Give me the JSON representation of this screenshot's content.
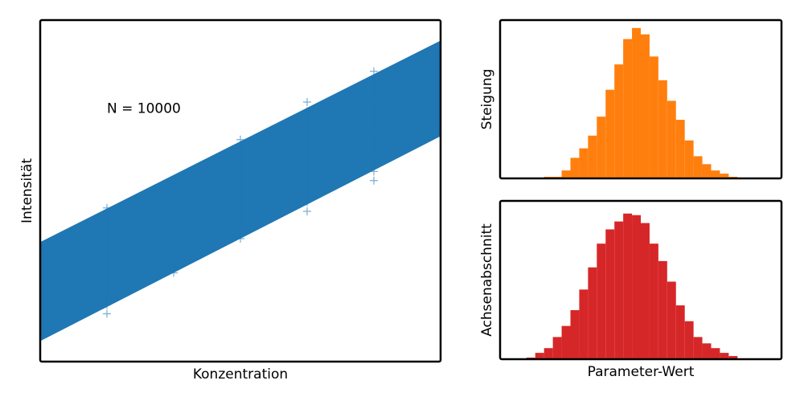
{
  "chart_data": [
    {
      "type": "line-band",
      "annotation": "N = 10000",
      "xlabel": "Konzentration",
      "ylabel": "Intensität",
      "xlim": [
        0,
        6
      ],
      "ylim": [
        0,
        10
      ],
      "color": "#1f77b4",
      "x": [
        0,
        6
      ],
      "lower": [
        0.6,
        6.6
      ],
      "upper": [
        3.5,
        9.4
      ],
      "point_x": [
        1,
        2,
        3,
        4,
        5
      ],
      "point_low": [
        1.4,
        2.6,
        3.6,
        4.4,
        5.3
      ],
      "point_high": [
        4.5,
        5.2,
        6.5,
        7.6,
        8.5
      ]
    },
    {
      "type": "histogram",
      "ylabel": "Steigung",
      "color": "#ff7f0e",
      "xlim": [
        0,
        32
      ],
      "ylim": [
        0,
        100
      ],
      "bins": [
        5,
        6,
        7,
        8,
        9,
        10,
        11,
        12,
        13,
        14,
        15,
        16,
        17,
        18,
        19,
        20,
        21,
        22,
        23,
        24,
        25,
        26,
        27
      ],
      "counts": [
        1,
        1,
        5,
        13,
        19,
        27,
        39,
        56,
        72,
        88,
        95,
        91,
        77,
        62,
        49,
        37,
        24,
        14,
        9,
        5,
        3,
        1
      ]
    },
    {
      "type": "histogram",
      "ylabel": "Achsenabschnitt",
      "xlabel": "Parameter-Wert",
      "color": "#d62728",
      "xlim": [
        0,
        32
      ],
      "ylim": [
        0,
        100
      ],
      "bins": [
        3,
        4,
        5,
        6,
        7,
        8,
        9,
        10,
        11,
        12,
        13,
        14,
        15,
        16,
        17,
        18,
        19,
        20,
        21,
        22,
        23,
        24,
        25,
        26,
        27
      ],
      "counts": [
        1,
        4,
        7,
        14,
        21,
        31,
        44,
        58,
        73,
        82,
        87,
        92,
        91,
        86,
        73,
        62,
        49,
        34,
        24,
        14,
        10,
        7,
        4,
        2
      ]
    }
  ]
}
